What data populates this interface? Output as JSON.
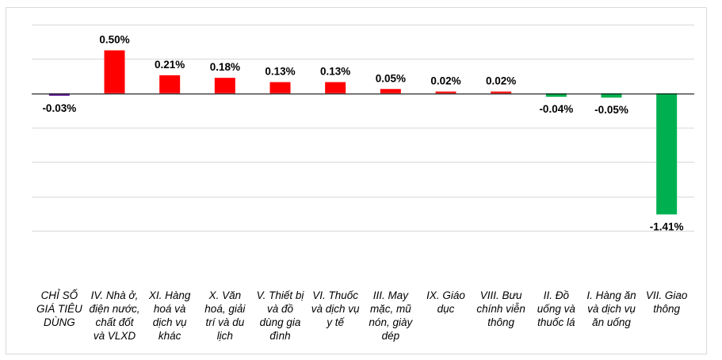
{
  "chart_data": {
    "type": "bar",
    "title": "",
    "xlabel": "",
    "ylabel": "",
    "ylim": [
      -1.6,
      0.8
    ],
    "grid": true,
    "categories": [
      "CHỈ SỐ GIÁ TIÊU DÙNG",
      "IV. Nhà ở, điện nước, chất đốt và VLXD",
      "XI. Hàng hoá và dịch vụ khác",
      "X. Văn hoá, giải trí và du lịch",
      "V. Thiết bị và đồ dùng gia đình",
      "VI. Thuốc và dịch vụ y tế",
      "III. May mặc, mũ nón, giày dép",
      "IX. Giáo dục",
      "VIII. Bưu chính viễn thông",
      "II. Đồ uống và thuốc lá",
      "I. Hàng ăn và dịch vụ ăn uống",
      "VII. Giao thông"
    ],
    "values": [
      -0.03,
      0.5,
      0.21,
      0.18,
      0.13,
      0.13,
      0.05,
      0.02,
      0.02,
      -0.04,
      -0.05,
      -1.41
    ],
    "data_labels": [
      "-0.03%",
      "0.50%",
      "0.21%",
      "0.18%",
      "0.13%",
      "0.13%",
      "0.05%",
      "0.02%",
      "0.02%",
      "-0.04%",
      "-0.05%",
      "-1.41%"
    ],
    "colors": {
      "index": "#7030a0",
      "positive": "#ff0000",
      "negative": "#00b050",
      "grid": "#d9d9d9",
      "axis": "#000000"
    }
  }
}
